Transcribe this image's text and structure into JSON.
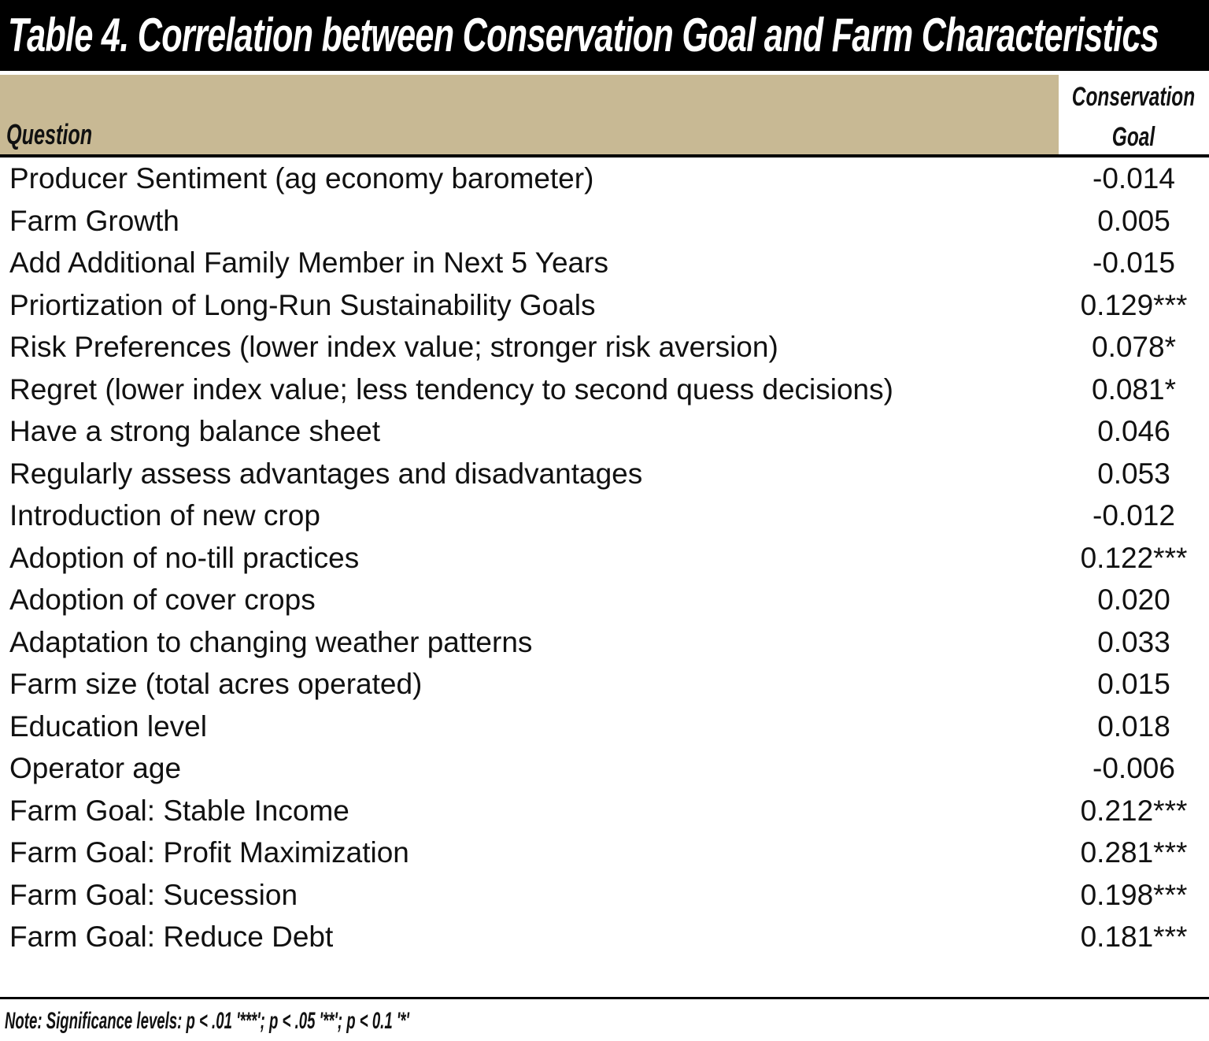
{
  "header": {
    "title": "Table 4. Correlation between Conservation Goal and Farm Characteristics"
  },
  "table": {
    "columns": [
      "Question",
      "Conservation Goal"
    ],
    "rows": [
      [
        "Producer Sentiment (ag economy barometer)",
        "-0.014"
      ],
      [
        "Farm Growth",
        "0.005"
      ],
      [
        "Add Additional Family Member in Next 5 Years",
        "-0.015"
      ],
      [
        "Priortization of Long-Run Sustainability Goals",
        "0.129***"
      ],
      [
        "Risk Preferences (lower index value; stronger risk aversion)",
        "0.078*"
      ],
      [
        "Regret (lower index value; less tendency to second quess decisions)",
        "0.081*"
      ],
      [
        "Have a strong balance sheet",
        "0.046"
      ],
      [
        "Regularly assess advantages and disadvantages",
        "0.053"
      ],
      [
        "Introduction of new crop",
        "-0.012"
      ],
      [
        "Adoption of no-till practices",
        "0.122***"
      ],
      [
        "Adoption of cover crops",
        "0.020"
      ],
      [
        "Adaptation to changing weather patterns",
        "0.033"
      ],
      [
        "Farm size (total acres operated)",
        "0.015"
      ],
      [
        "Education level",
        "0.018"
      ],
      [
        "Operator age",
        "-0.006"
      ],
      [
        "Farm Goal: Stable Income",
        "0.212***"
      ],
      [
        "Farm Goal: Profit Maximization",
        "0.281***"
      ],
      [
        "Farm Goal: Sucession",
        "0.198***"
      ],
      [
        "Farm Goal: Reduce Debt",
        "0.181***"
      ]
    ]
  },
  "footer": {
    "note": "Note: Significance levels: p < .01 '***'; p < .05 '**'; p < 0.1 '*'"
  }
}
